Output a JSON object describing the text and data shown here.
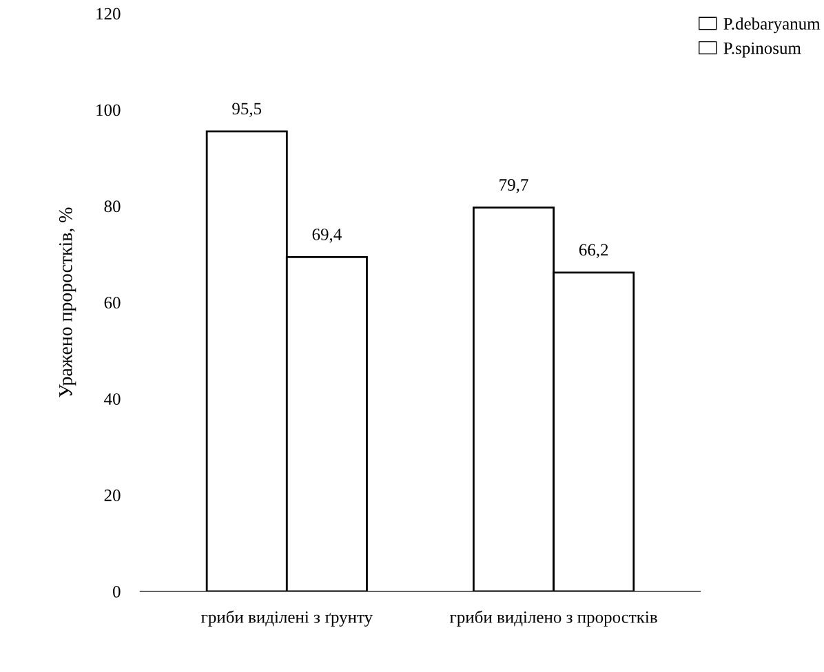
{
  "chart_data": {
    "type": "bar",
    "ylabel": "Уражено проростків, %",
    "categories": [
      "гриби виділені з ґрунту",
      "гриби виділено з проростків"
    ],
    "series": [
      {
        "name": "P.debaryanum",
        "color": "#ffffff",
        "values": [
          95.5,
          79.7
        ],
        "value_labels": [
          "95,5",
          "79,7"
        ]
      },
      {
        "name": "P.spinosum",
        "color": "#ffffff",
        "values": [
          69.4,
          66.2
        ],
        "value_labels": [
          "69,4",
          "66,2"
        ]
      }
    ],
    "ylim": [
      0,
      120
    ],
    "yticks": [
      0,
      20,
      40,
      60,
      80,
      100,
      120
    ],
    "grid": false,
    "legend": "top right"
  }
}
